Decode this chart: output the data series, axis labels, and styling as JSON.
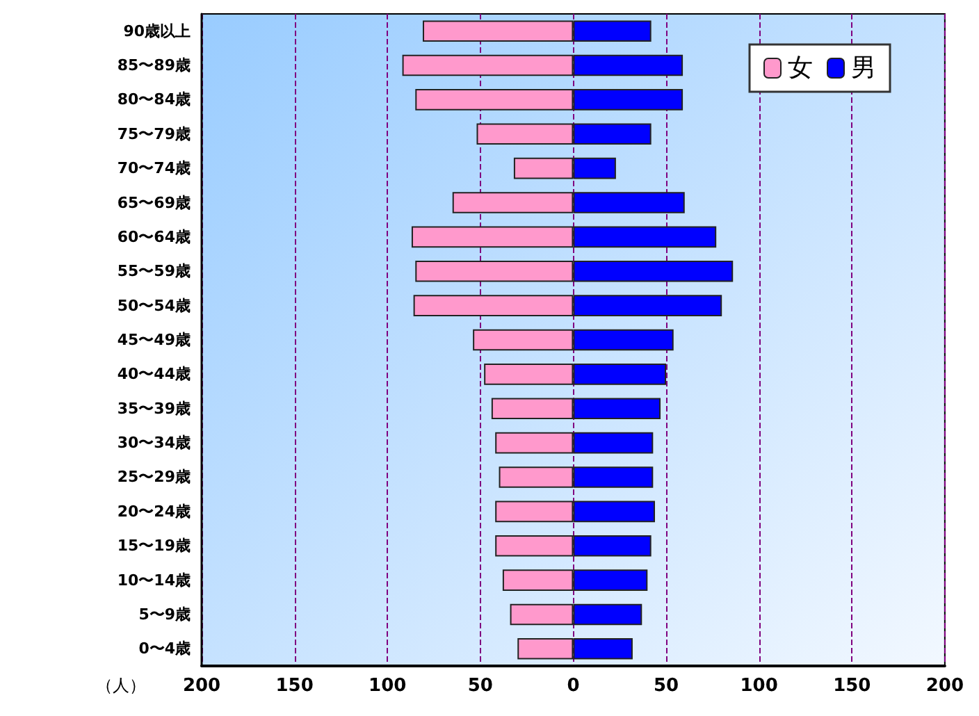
{
  "chart_data": {
    "type": "bar",
    "orientation": "horizontal",
    "stacked": true,
    "xlabel": "（人）",
    "categories": [
      "90歳以上",
      "85〜89歳",
      "80〜84歳",
      "75〜79歳",
      "70〜74歳",
      "65〜69歳",
      "60〜64歳",
      "55〜59歳",
      "50〜54歳",
      "45〜49歳",
      "40〜44歳",
      "35〜39歳",
      "30〜34歳",
      "25〜29歳",
      "20〜24歳",
      "15〜19歳",
      "10〜14歳",
      "5〜9歳",
      "0〜4歳"
    ],
    "series": [
      {
        "name": "女",
        "color": "#ff99cc",
        "values": [
          -81,
          -92,
          -85,
          -52,
          -32,
          -65,
          -87,
          -85,
          -86,
          -54,
          -48,
          -44,
          -42,
          -40,
          -42,
          -42,
          -38,
          -34,
          -30
        ]
      },
      {
        "name": "男",
        "color": "#0000ff",
        "values": [
          42,
          59,
          59,
          42,
          23,
          60,
          77,
          86,
          80,
          54,
          50,
          47,
          43,
          43,
          44,
          42,
          40,
          37,
          32
        ]
      }
    ],
    "xlim": [
      -200,
      200
    ],
    "xticks": [
      {
        "value": -200,
        "label": "200"
      },
      {
        "value": -150,
        "label": "150"
      },
      {
        "value": -100,
        "label": "100"
      },
      {
        "value": -50,
        "label": "50"
      },
      0,
      50,
      100,
      150,
      200
    ],
    "grid": "x",
    "legend": "top right"
  }
}
